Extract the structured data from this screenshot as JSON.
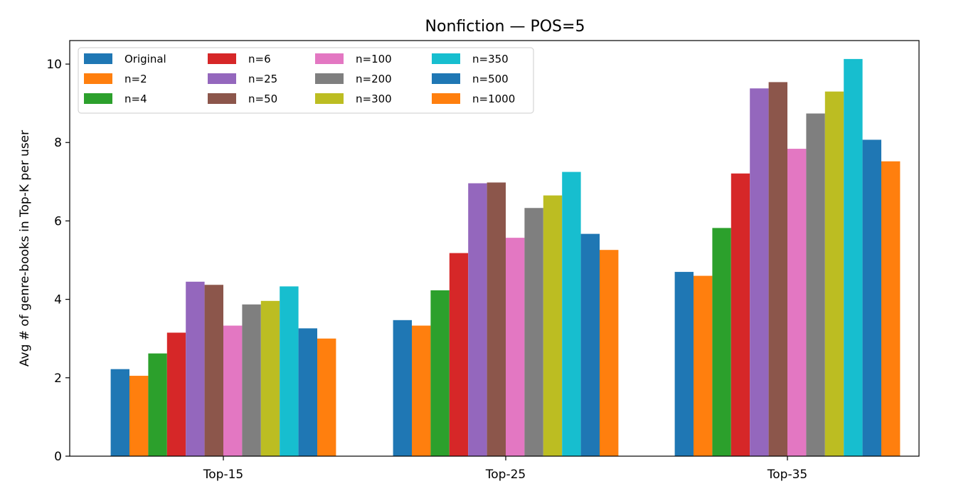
{
  "chart_data": {
    "type": "bar",
    "title": "Nonfiction — POS=5",
    "xlabel": "",
    "ylabel": "Avg # of genre-books in Top-K per user",
    "categories": [
      "Top-15",
      "Top-25",
      "Top-35"
    ],
    "ylim": [
      0,
      10.6
    ],
    "yticks": [
      0,
      2,
      4,
      6,
      8,
      10
    ],
    "legend_position": "top-left",
    "series": [
      {
        "name": "Original",
        "color": "#1f77b4",
        "values": [
          2.22,
          3.47,
          4.7
        ]
      },
      {
        "name": "n=2",
        "color": "#ff7f0e",
        "values": [
          2.05,
          3.33,
          4.6
        ]
      },
      {
        "name": "n=4",
        "color": "#2ca02c",
        "values": [
          2.62,
          4.23,
          5.82
        ]
      },
      {
        "name": "n=6",
        "color": "#d62728",
        "values": [
          3.15,
          5.18,
          7.21
        ]
      },
      {
        "name": "n=25",
        "color": "#9467bd",
        "values": [
          4.45,
          6.96,
          9.38
        ]
      },
      {
        "name": "n=50",
        "color": "#8c564b",
        "values": [
          4.37,
          6.98,
          9.54
        ]
      },
      {
        "name": "n=100",
        "color": "#e377c2",
        "values": [
          3.33,
          5.57,
          7.84
        ]
      },
      {
        "name": "n=200",
        "color": "#7f7f7f",
        "values": [
          3.87,
          6.33,
          8.74
        ]
      },
      {
        "name": "n=300",
        "color": "#bcbd22",
        "values": [
          3.96,
          6.65,
          9.3
        ]
      },
      {
        "name": "n=350",
        "color": "#17becf",
        "values": [
          4.33,
          7.25,
          10.13
        ]
      },
      {
        "name": "n=500",
        "color": "#1f77b4",
        "values": [
          3.26,
          5.67,
          8.07
        ]
      },
      {
        "name": "n=1000",
        "color": "#ff7f0e",
        "values": [
          3.0,
          5.26,
          7.52
        ]
      }
    ]
  }
}
